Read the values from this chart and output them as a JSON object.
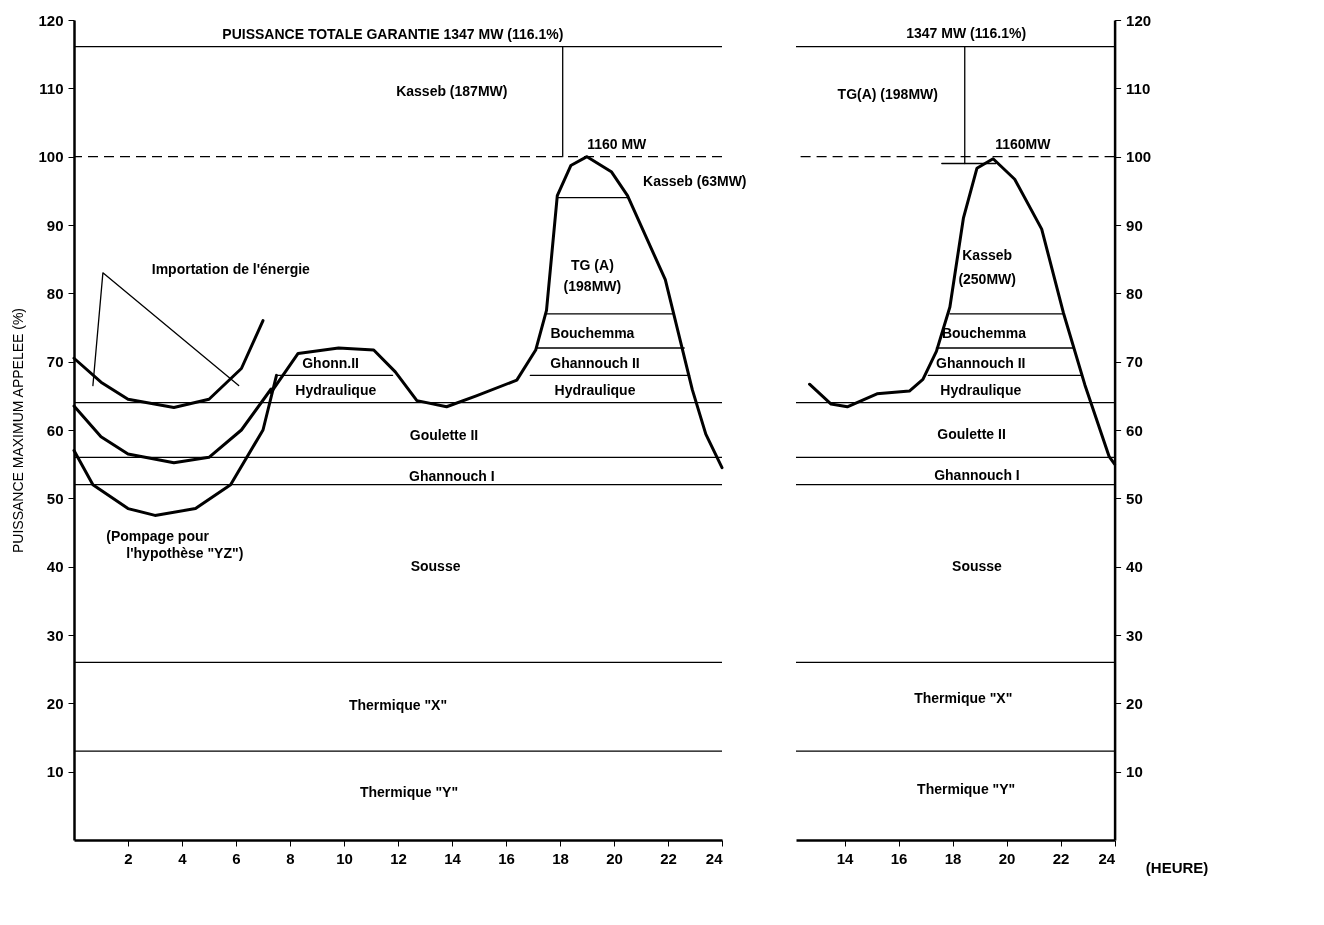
{
  "chart_data": [
    {
      "type": "line",
      "ylabel": "PUISSANCE MAXIMUM APPELEE (%)",
      "xlim": [
        0,
        24
      ],
      "xticks": [
        2,
        4,
        6,
        8,
        10,
        12,
        14,
        16,
        18,
        20,
        22,
        24
      ],
      "ylim": [
        0,
        120
      ],
      "yticks": [
        10,
        20,
        30,
        40,
        50,
        60,
        70,
        80,
        90,
        100,
        110,
        120
      ],
      "series": [
        {
          "axis": "y",
          "color": "#000000",
          "x": [
            7.3,
            8.3,
            9.8,
            11.1,
            11.9,
            12.7,
            13.8,
            14.9,
            16.4,
            17.1,
            17.5,
            17.9,
            18.4,
            19.0,
            19.9,
            20.5,
            21.9,
            22.9,
            23.4,
            24.0
          ],
          "values": [
            65.5,
            71.2,
            72.0,
            71.7,
            68.5,
            64.3,
            63.4,
            65.0,
            67.3,
            71.7,
            77.5,
            94.3,
            98.7,
            100,
            97.8,
            94.3,
            82.0,
            65.9,
            59.4,
            54.5
          ]
        },
        {
          "axis": "y",
          "color": "#000000",
          "x": [
            0,
            1,
            2,
            3.7,
            5,
            6.2,
            7
          ],
          "values": [
            70.5,
            67,
            64.5,
            63.3,
            64.5,
            69,
            76
          ]
        },
        {
          "axis": "y",
          "color": "#000000",
          "x": [
            0,
            1,
            2,
            3.7,
            5,
            6.2,
            7.3
          ],
          "values": [
            63.5,
            59,
            56.5,
            55.2,
            56,
            60,
            66
          ]
        },
        {
          "axis": "y",
          "color": "#000000",
          "x": [
            0,
            0.7,
            2,
            3,
            4.5,
            5.8,
            7,
            7.5
          ],
          "values": [
            57,
            52,
            48.5,
            47.5,
            48.5,
            52,
            60,
            68
          ]
        },
        {
          "axis": "y",
          "color": "#000000",
          "x": [
            0.7,
            1.07,
            6.1
          ],
          "values": [
            66.5,
            83,
            66.5
          ]
        },
        {
          "axis": "y",
          "color": "#000000",
          "x": [
            18.1,
            18.1
          ],
          "values": [
            100,
            116.1
          ]
        },
        {
          "axis": "y",
          "color": "#000000",
          "x": [
            17.9,
            20.5
          ],
          "values": [
            94,
            94
          ]
        },
        {
          "axis": "y",
          "color": "#000000",
          "x": [
            17.5,
            22.2
          ],
          "values": [
            77,
            77
          ]
        },
        {
          "axis": "y",
          "color": "#000000",
          "x": [
            17.1,
            22.6
          ],
          "values": [
            72,
            72
          ]
        },
        {
          "axis": "y",
          "color": "#000000",
          "x": [
            16.9,
            22.8
          ],
          "values": [
            68,
            68
          ]
        },
        {
          "axis": "y",
          "color": "#000000",
          "x": [
            7.5,
            11.8
          ],
          "values": [
            68,
            68
          ]
        }
      ],
      "ref_lines": [
        {
          "axis": "y",
          "value": 116.1
        },
        {
          "axis": "y",
          "value": 100,
          "line_style": "dashed"
        },
        {
          "axis": "y",
          "value": 64
        },
        {
          "axis": "y",
          "value": 56
        },
        {
          "axis": "y",
          "value": 52
        },
        {
          "axis": "y",
          "value": 26
        },
        {
          "axis": "y",
          "value": 13
        }
      ],
      "annotations": [
        "PUISSANCE TOTALE GARANTIE 1347 MW (116.1%)",
        "Kasseb (187MW)",
        "1160 MW",
        "Kasseb (63MW)",
        "TG (A)",
        "(198MW)",
        "Bouchemma",
        "Ghannouch II",
        "Hydraulique",
        "Ghonn.II",
        "Hydraulique",
        "Goulette II",
        "Ghannouch I",
        "Sousse",
        "Thermique \"X\"",
        "Thermique \"Y\"",
        "Importation de l'énergie",
        "(Pompage pour",
        "l'hypothèse \"YZ\")"
      ]
    },
    {
      "type": "line",
      "xlabel": "(HEURE)",
      "xlim": [
        12.2,
        24
      ],
      "xticks": [
        14,
        16,
        18,
        20,
        22,
        24
      ],
      "y2lim": [
        0,
        120
      ],
      "y2ticks": [
        10,
        20,
        30,
        40,
        50,
        60,
        70,
        80,
        90,
        100,
        110,
        120
      ],
      "series": [
        {
          "axis": "y2",
          "color": "#000000",
          "x": [
            12.7,
            13.5,
            14.1,
            15.2,
            16.4,
            16.9,
            17.4,
            17.9,
            18.4,
            18.9,
            19.5,
            20.3,
            21.3,
            22.1,
            22.9,
            23.8,
            24
          ],
          "values": [
            66.7,
            63.8,
            63.4,
            65.3,
            65.7,
            67.4,
            71.5,
            78.0,
            91.0,
            98.3,
            99.7,
            96.7,
            89.4,
            77.2,
            66.6,
            56.1,
            55
          ]
        },
        {
          "axis": "y2",
          "color": "#000000",
          "x": [
            18.45,
            18.45
          ],
          "values": [
            99,
            116.1
          ]
        },
        {
          "axis": "y2",
          "color": "#000000",
          "x": [
            17.6,
            19.6
          ],
          "values": [
            99,
            99
          ]
        },
        {
          "axis": "y2",
          "color": "#000000",
          "x": [
            17.9,
            22.1
          ],
          "values": [
            77,
            77
          ]
        },
        {
          "axis": "y2",
          "color": "#000000",
          "x": [
            17.4,
            22.5
          ],
          "values": [
            72,
            72
          ]
        },
        {
          "axis": "y2",
          "color": "#000000",
          "x": [
            17.1,
            22.8
          ],
          "values": [
            68,
            68
          ]
        }
      ],
      "ref_lines": [
        {
          "axis": "y2",
          "value": 116.1
        },
        {
          "axis": "y2",
          "value": 100,
          "line_style": "dashed"
        },
        {
          "axis": "y2",
          "value": 64
        },
        {
          "axis": "y2",
          "value": 56
        },
        {
          "axis": "y2",
          "value": 52
        },
        {
          "axis": "y2",
          "value": 26
        },
        {
          "axis": "y2",
          "value": 13
        }
      ],
      "annotations": [
        "1347 MW (116.1%)",
        "TG(A) (198MW)",
        "1160MW",
        "Kasseb",
        "(250MW)",
        "Bouchemma",
        "Ghannouch II",
        "Hydraulique",
        "Goulette II",
        "Ghannouch I",
        "Sousse",
        "Thermique \"X\"",
        "Thermique \"Y\""
      ]
    }
  ]
}
